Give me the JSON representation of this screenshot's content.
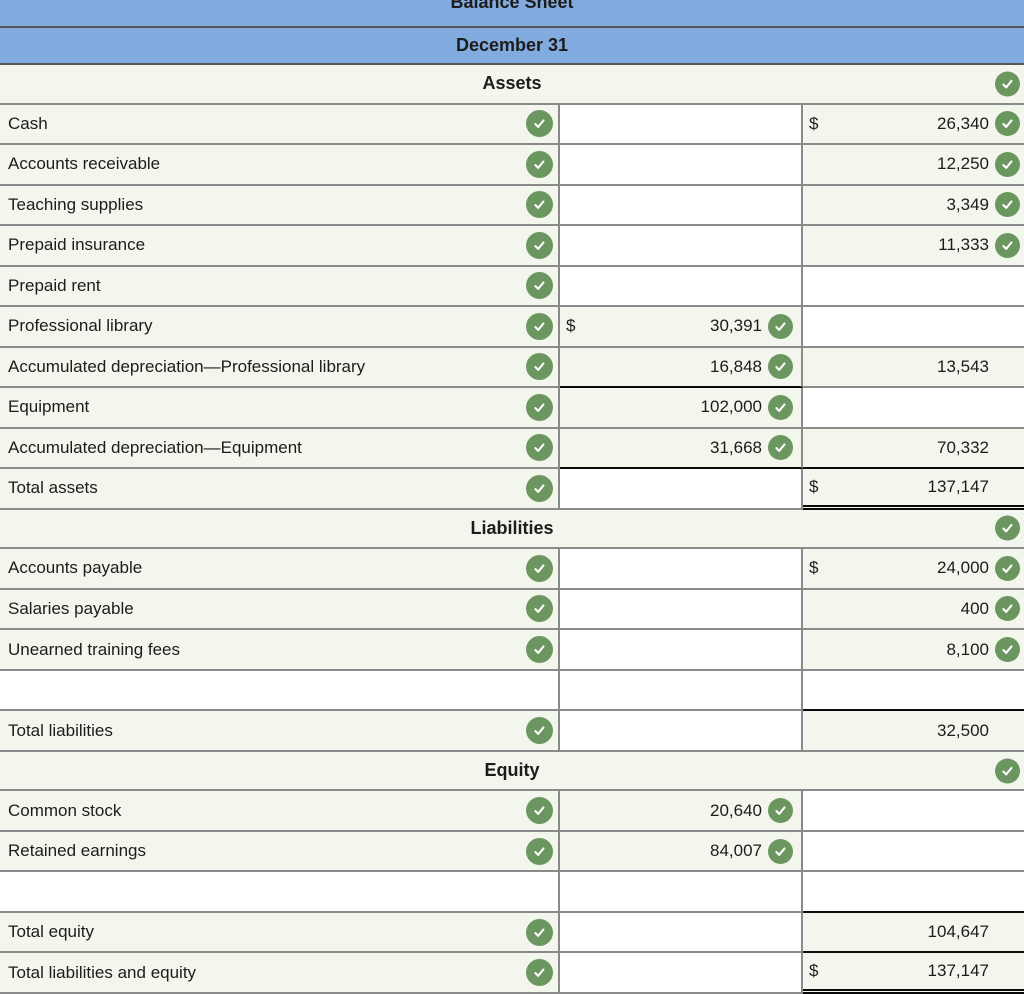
{
  "report": {
    "title": "Balance Sheet",
    "date_line": "December 31"
  },
  "colors": {
    "banner_blue": "#82abdf",
    "row_tint": "#f3f6ec",
    "check_green": "#6c9660",
    "grid_gray": "#8a8a8a",
    "accounting_rule_black": "#0a0a0a"
  },
  "icons": {
    "check": "check-icon"
  },
  "table": {
    "sections": [
      {
        "name": "Assets",
        "check": true,
        "rows": [
          {
            "label": "Cash",
            "label_check": true,
            "mid": {},
            "right": {
              "dollar": "$",
              "value": "26,340",
              "check": true
            }
          },
          {
            "label": "Accounts receivable",
            "label_check": true,
            "mid": {},
            "right": {
              "value": "12,250",
              "check": true
            }
          },
          {
            "label": "Teaching supplies",
            "label_check": true,
            "mid": {},
            "right": {
              "value": "3,349",
              "check": true
            }
          },
          {
            "label": "Prepaid insurance",
            "label_check": true,
            "mid": {},
            "right": {
              "value": "11,333",
              "check": true
            }
          },
          {
            "label": "Prepaid rent",
            "label_check": true,
            "mid": {},
            "right": {}
          },
          {
            "label": "Professional library",
            "label_check": true,
            "mid": {
              "dollar": "$",
              "value": "30,391",
              "check": true
            },
            "right": {}
          },
          {
            "label": "Accumulated depreciation—Professional library",
            "label_check": true,
            "mid": {
              "value": "16,848",
              "check": true,
              "bottom": "black"
            },
            "right": {
              "value": "13,543"
            }
          },
          {
            "label": "Equipment",
            "label_check": true,
            "mid": {
              "value": "102,000",
              "check": true
            },
            "right": {}
          },
          {
            "label": "Accumulated depreciation—Equipment",
            "label_check": true,
            "mid": {
              "value": "31,668",
              "check": true,
              "bottom": "black"
            },
            "right": {
              "value": "70,332",
              "bottom": "black"
            }
          },
          {
            "label": "Total assets",
            "label_check": true,
            "mid": {},
            "right": {
              "dollar": "$",
              "value": "137,147",
              "bottom": "double"
            }
          }
        ]
      },
      {
        "name": "Liabilities",
        "check": true,
        "rows": [
          {
            "label": "Accounts payable",
            "label_check": true,
            "mid": {},
            "right": {
              "dollar": "$",
              "value": "24,000",
              "check": true
            }
          },
          {
            "label": "Salaries payable",
            "label_check": true,
            "mid": {},
            "right": {
              "value": "400",
              "check": true
            }
          },
          {
            "label": "Unearned training fees",
            "label_check": true,
            "mid": {},
            "right": {
              "value": "8,100",
              "check": true
            }
          },
          {
            "label": "",
            "label_check": false,
            "mid": {},
            "right": {
              "bottom": "black"
            }
          },
          {
            "label": "Total liabilities",
            "label_check": true,
            "mid": {},
            "right": {
              "value": "32,500"
            }
          }
        ]
      },
      {
        "name": "Equity",
        "check": true,
        "rows": [
          {
            "label": "Common stock",
            "label_check": true,
            "mid": {
              "value": "20,640",
              "check": true
            },
            "right": {}
          },
          {
            "label": "Retained earnings",
            "label_check": true,
            "mid": {
              "value": "84,007",
              "check": true
            },
            "right": {}
          },
          {
            "label": "",
            "label_check": false,
            "mid": {},
            "right": {
              "bottom": "black"
            }
          },
          {
            "label": "Total equity",
            "label_check": true,
            "mid": {},
            "right": {
              "value": "104,647",
              "bottom": "black"
            }
          },
          {
            "label": "Total liabilities and equity",
            "label_check": true,
            "mid": {},
            "right": {
              "dollar": "$",
              "value": "137,147",
              "bottom": "double"
            }
          }
        ]
      }
    ]
  }
}
